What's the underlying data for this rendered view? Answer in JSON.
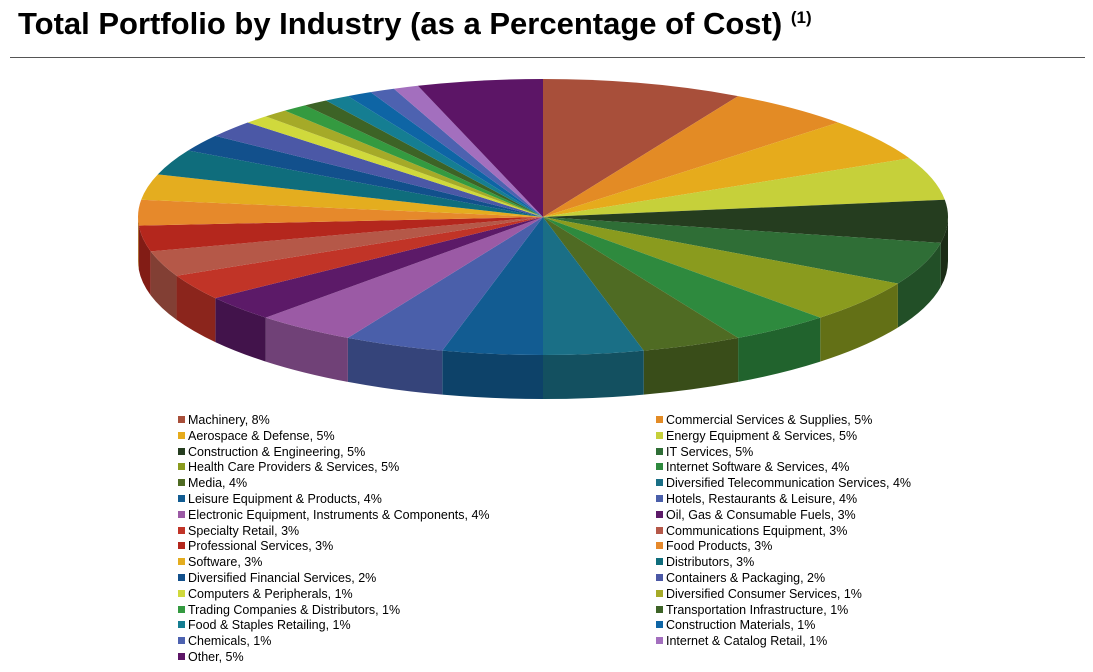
{
  "title": "Total Portfolio by Industry (as a Percentage of Cost)",
  "footnote": "(1)",
  "chart_data": {
    "type": "pie",
    "title": "Total Portfolio by Industry (as a Percentage of Cost)",
    "slices": [
      {
        "label": "Machinery, 8%",
        "value": 8,
        "color": "#a84f3a"
      },
      {
        "label": "Commercial Services & Supplies, 5%",
        "value": 5,
        "color": "#e38b25"
      },
      {
        "label": "Aerospace & Defense, 5%",
        "value": 5,
        "color": "#e6ab1c"
      },
      {
        "label": "Energy Equipment & Services, 5%",
        "value": 5,
        "color": "#c6d03a"
      },
      {
        "label": "Construction & Engineering, 5%",
        "value": 5,
        "color": "#253d1f"
      },
      {
        "label": "IT Services, 5%",
        "value": 5,
        "color": "#2f6e36"
      },
      {
        "label": "Health Care Providers & Services, 5%",
        "value": 5,
        "color": "#8a9b1e"
      },
      {
        "label": "Internet Software & Services, 4%",
        "value": 4,
        "color": "#2e8a3e"
      },
      {
        "label": "Media, 4%",
        "value": 4,
        "color": "#4f6b23"
      },
      {
        "label": "Diversified Telecommunication Services, 4%",
        "value": 4,
        "color": "#1a6f86"
      },
      {
        "label": "Leisure Equipment & Products, 4%",
        "value": 4,
        "color": "#125c92"
      },
      {
        "label": "Hotels, Restaurants & Leisure, 4%",
        "value": 4,
        "color": "#4a5faa"
      },
      {
        "label": "Electronic Equipment, Instruments & Components, 4%",
        "value": 4,
        "color": "#9b5aa5"
      },
      {
        "label": "Oil, Gas & Consumable Fuels, 3%",
        "value": 3,
        "color": "#5c1a68"
      },
      {
        "label": "Specialty Retail, 3%",
        "value": 3,
        "color": "#c13427"
      },
      {
        "label": "Communications Equipment, 3%",
        "value": 3,
        "color": "#b55848"
      },
      {
        "label": "Professional Services, 3%",
        "value": 3,
        "color": "#b4271d"
      },
      {
        "label": "Food Products, 3%",
        "value": 3,
        "color": "#e6892b"
      },
      {
        "label": "Software, 3%",
        "value": 3,
        "color": "#e4ad1f"
      },
      {
        "label": "Distributors, 3%",
        "value": 3,
        "color": "#0f6d7c"
      },
      {
        "label": "Diversified Financial Services, 2%",
        "value": 2,
        "color": "#12508c"
      },
      {
        "label": "Containers & Packaging, 2%",
        "value": 2,
        "color": "#4b58a6"
      },
      {
        "label": "Computers & Peripherals, 1%",
        "value": 1,
        "color": "#d0d93c"
      },
      {
        "label": "Diversified Consumer Services, 1%",
        "value": 1,
        "color": "#a5aa28"
      },
      {
        "label": "Trading Companies & Distributors, 1%",
        "value": 1,
        "color": "#349a40"
      },
      {
        "label": "Transportation Infrastructure, 1%",
        "value": 1,
        "color": "#3d6326"
      },
      {
        "label": "Food & Staples Retailing, 1%",
        "value": 1,
        "color": "#157e92"
      },
      {
        "label": "Construction Materials, 1%",
        "value": 1,
        "color": "#0e65a5"
      },
      {
        "label": "Chemicals, 1%",
        "value": 1,
        "color": "#4d62b0"
      },
      {
        "label": "Internet & Catalog Retail, 1%",
        "value": 1,
        "color": "#a36fbe"
      },
      {
        "label": "Other, 5%",
        "value": 5,
        "color": "#5c1566"
      }
    ]
  }
}
